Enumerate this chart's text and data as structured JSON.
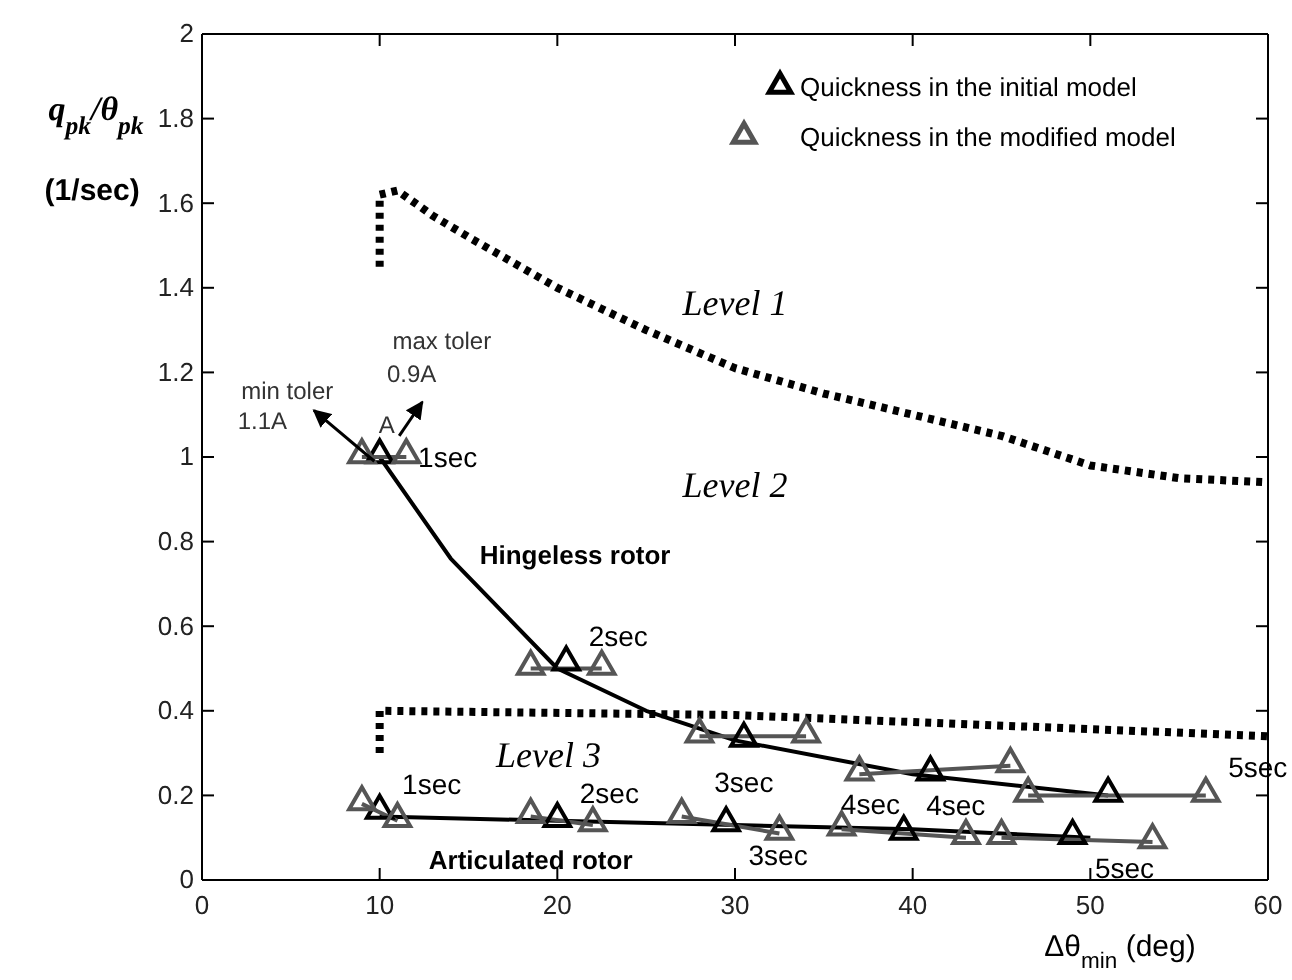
{
  "chart_data": {
    "type": "line",
    "xlabel": "Δθ$_{min}$ (deg)",
    "ylabel": "q$_{pk}$/θ$_{pk}$ (1/sec)",
    "xlim": [
      0,
      60
    ],
    "xticks": [
      0,
      10,
      20,
      30,
      40,
      50,
      60
    ],
    "ylim": [
      0,
      2
    ],
    "yticks": [
      0,
      0.2,
      0.4,
      0.6,
      0.8,
      1,
      1.2,
      1.4,
      1.6,
      1.8,
      2
    ],
    "grid": false,
    "legend": "top right",
    "marker": "triangle",
    "series": [
      {
        "color": "#000000",
        "marker": "none",
        "line_style": "dotted",
        "x": [
          10,
          10,
          11,
          13,
          15,
          20,
          25,
          30,
          35,
          40,
          45,
          50,
          55,
          60
        ],
        "values": [
          1.45,
          1.62,
          1.63,
          1.57,
          1.52,
          1.4,
          1.3,
          1.21,
          1.15,
          1.1,
          1.05,
          0.98,
          0.95,
          0.94
        ]
      },
      {
        "color": "#000000",
        "marker": "none",
        "line_style": "dotted",
        "x": [
          10,
          10,
          30,
          60
        ],
        "values": [
          0.3,
          0.4,
          0.39,
          0.34
        ]
      },
      {
        "color": "#000000",
        "marker": "none",
        "line_style": "solid",
        "x": [
          10,
          14,
          20,
          25,
          30,
          40,
          51
        ],
        "values": [
          1.0,
          0.76,
          0.5,
          0.4,
          0.33,
          0.25,
          0.2
        ]
      },
      {
        "color": "#000000",
        "marker": "none",
        "line_style": "solid",
        "x": [
          10,
          20,
          30,
          40,
          50
        ],
        "values": [
          0.15,
          0.14,
          0.13,
          0.12,
          0.1
        ]
      },
      {
        "color": "#555555",
        "marker": "none",
        "line_style": "solid",
        "x": [
          9,
          11.5
        ],
        "values": [
          1.0,
          1.0
        ]
      },
      {
        "color": "#555555",
        "marker": "none",
        "line_style": "solid",
        "x": [
          18.5,
          22.5
        ],
        "values": [
          0.5,
          0.5
        ]
      },
      {
        "color": "#555555",
        "marker": "none",
        "line_style": "solid",
        "x": [
          28,
          34
        ],
        "values": [
          0.34,
          0.34
        ]
      },
      {
        "color": "#555555",
        "marker": "none",
        "line_style": "solid",
        "x": [
          37,
          45.5
        ],
        "values": [
          0.25,
          0.27
        ]
      },
      {
        "color": "#555555",
        "marker": "none",
        "line_style": "solid",
        "x": [
          46.5,
          56.5
        ],
        "values": [
          0.2,
          0.2
        ]
      },
      {
        "color": "#555555",
        "marker": "none",
        "line_style": "solid",
        "x": [
          9,
          11
        ],
        "values": [
          0.18,
          0.14
        ]
      },
      {
        "color": "#555555",
        "marker": "none",
        "line_style": "solid",
        "x": [
          18.5,
          22
        ],
        "values": [
          0.15,
          0.13
        ]
      },
      {
        "color": "#555555",
        "marker": "none",
        "line_style": "solid",
        "x": [
          27,
          32.5
        ],
        "values": [
          0.15,
          0.11
        ]
      },
      {
        "color": "#555555",
        "marker": "none",
        "line_style": "solid",
        "x": [
          36,
          43
        ],
        "values": [
          0.12,
          0.1
        ]
      },
      {
        "color": "#555555",
        "marker": "none",
        "line_style": "solid",
        "x": [
          45,
          53.5
        ],
        "values": [
          0.1,
          0.09
        ]
      },
      {
        "type": "scatter",
        "name": "Quickness in the initial model",
        "color": "#000000",
        "x": [
          10,
          20.5,
          30.5,
          41,
          51,
          10,
          20,
          29.5,
          39.5,
          49
        ],
        "values": [
          1.0,
          0.51,
          0.33,
          0.25,
          0.2,
          0.16,
          0.14,
          0.13,
          0.11,
          0.1
        ]
      },
      {
        "type": "scatter",
        "name": "Quickness in the modified model",
        "color": "#555555",
        "x": [
          9,
          11.5,
          18.5,
          22.5,
          28,
          34,
          37,
          45.5,
          46.5,
          56.5,
          9,
          11,
          18.5,
          22,
          27,
          32.5,
          36,
          43,
          45,
          53.5
        ],
        "values": [
          1.0,
          1.0,
          0.5,
          0.5,
          0.34,
          0.34,
          0.25,
          0.27,
          0.2,
          0.2,
          0.18,
          0.14,
          0.15,
          0.13,
          0.15,
          0.11,
          0.12,
          0.1,
          0.1,
          0.09
        ]
      }
    ],
    "annotations": [
      "Level 1",
      "Level 2",
      "Level 3",
      "Hingeless rotor",
      "Articulated rotor",
      "min toler",
      "1.1A",
      "max toler",
      "0.9A",
      "A",
      {
        "text": "1sec",
        "x": 10,
        "y": 1.0
      },
      {
        "text": "2sec",
        "x": 20.5,
        "y": 0.51
      },
      {
        "text": "3sec",
        "x": 30.5,
        "y": 0.33
      },
      {
        "text": "4sec",
        "x": 41,
        "y": 0.25
      },
      {
        "text": "5sec",
        "x": 56.5,
        "y": 0.2
      },
      {
        "text": "1sec",
        "x": 10,
        "y": 0.16
      },
      {
        "text": "2sec",
        "x": 20,
        "y": 0.14
      },
      {
        "text": "3sec",
        "x": 29.5,
        "y": 0.13
      },
      {
        "text": "4sec",
        "x": 39.5,
        "y": 0.11
      },
      {
        "text": "5sec",
        "x": 49,
        "y": 0.1
      }
    ]
  }
}
